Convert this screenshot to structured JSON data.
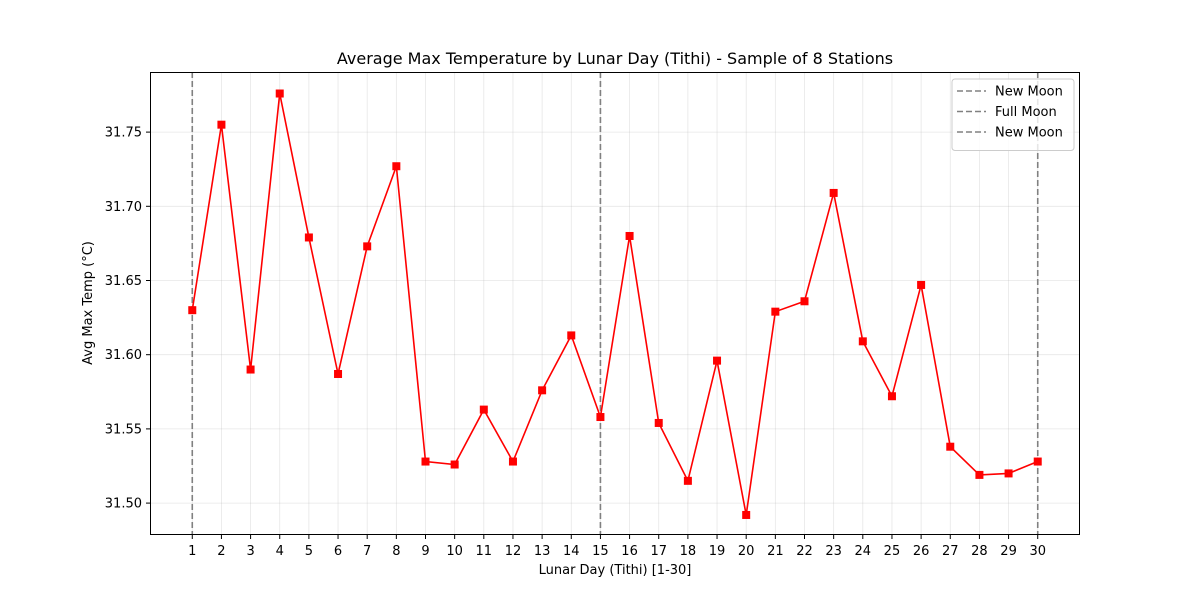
{
  "chart_data": {
    "type": "line",
    "title": "Average Max Temperature by Lunar Day (Tithi) - Sample of 8 Stations",
    "xlabel": "Lunar Day (Tithi) [1-30]",
    "ylabel": "Avg Max Temp (°C)",
    "x": [
      1,
      2,
      3,
      4,
      5,
      6,
      7,
      8,
      9,
      10,
      11,
      12,
      13,
      14,
      15,
      16,
      17,
      18,
      19,
      20,
      21,
      22,
      23,
      24,
      25,
      26,
      27,
      28,
      29,
      30
    ],
    "x_ticks": [
      "1",
      "2",
      "3",
      "4",
      "5",
      "6",
      "7",
      "8",
      "9",
      "10",
      "11",
      "12",
      "13",
      "14",
      "15",
      "16",
      "17",
      "18",
      "19",
      "20",
      "21",
      "22",
      "23",
      "24",
      "25",
      "26",
      "27",
      "28",
      "29",
      "30"
    ],
    "xlim": [
      -0.45,
      31.45
    ],
    "ylim": [
      31.4785,
      31.7905
    ],
    "y_ticks": [
      "31.50",
      "31.55",
      "31.60",
      "31.65",
      "31.70",
      "31.75"
    ],
    "y_tick_values": [
      31.5,
      31.55,
      31.6,
      31.65,
      31.7,
      31.75
    ],
    "grid": true,
    "legend_placement": "top-right",
    "series": [
      {
        "color": "#ff0000",
        "marker": "square",
        "values": [
          31.63,
          31.755,
          31.59,
          31.776,
          31.679,
          31.587,
          31.673,
          31.727,
          31.528,
          31.526,
          31.563,
          31.528,
          31.576,
          31.613,
          31.558,
          31.68,
          31.554,
          31.515,
          31.596,
          31.492,
          31.629,
          31.636,
          31.709,
          31.609,
          31.572,
          31.647,
          31.538,
          31.519,
          31.52,
          31.528
        ]
      }
    ],
    "vertical_lines": [
      {
        "x": 1,
        "label": "New Moon",
        "color": "#808080"
      },
      {
        "x": 15,
        "label": "Full Moon",
        "color": "#808080"
      },
      {
        "x": 30,
        "label": "New Moon",
        "color": "#808080"
      }
    ]
  }
}
